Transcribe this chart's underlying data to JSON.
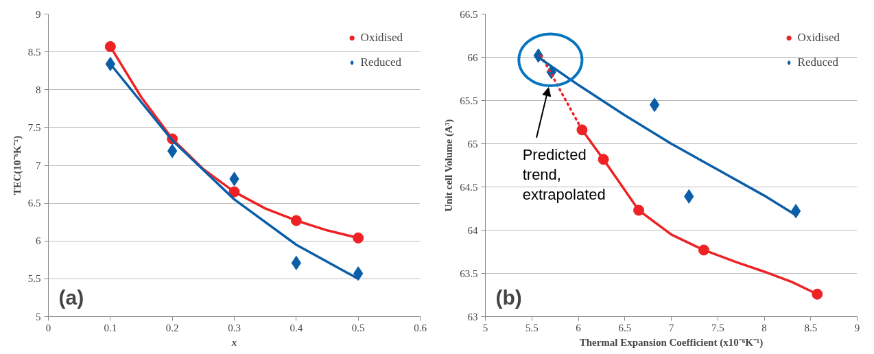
{
  "chart_data": [
    {
      "type": "scatter",
      "xlabel": "x",
      "ylabel": "TEC(10⁻⁶K⁻¹)",
      "xlim": [
        0,
        0.6
      ],
      "ylim": [
        5,
        9
      ],
      "xticks": [
        0,
        0.1,
        0.2,
        0.3,
        0.4,
        0.5,
        0.6
      ],
      "yticks": [
        5,
        5.5,
        6,
        6.5,
        7,
        7.5,
        8,
        8.5,
        9
      ],
      "grid": "y",
      "legend": "top right",
      "annotations": [
        "(a)"
      ],
      "series": [
        {
          "name": "Oxidised",
          "color": "#ee2224",
          "marker": "circle",
          "x": [
            0.1,
            0.2,
            0.3,
            0.4,
            0.5
          ],
          "values": [
            8.57,
            7.35,
            6.65,
            6.27,
            6.04
          ]
        },
        {
          "name": "Reduced",
          "color": "#0a5ea8",
          "marker": "diamond",
          "x": [
            0.1,
            0.2,
            0.3,
            0.4,
            0.5
          ],
          "values": [
            8.34,
            7.19,
            6.82,
            5.71,
            5.57
          ]
        },
        {
          "type": "line",
          "color": "#ee2224",
          "line_style": "solid",
          "x": [
            0.1,
            0.15,
            0.2,
            0.25,
            0.3,
            0.35,
            0.4,
            0.45,
            0.5
          ],
          "values": [
            8.57,
            7.9,
            7.35,
            6.95,
            6.65,
            6.43,
            6.27,
            6.14,
            6.04
          ]
        },
        {
          "type": "line",
          "color": "#0a5ea8",
          "line_style": "solid",
          "x": [
            0.1,
            0.2,
            0.3,
            0.4,
            0.5
          ],
          "values": [
            8.34,
            7.33,
            6.55,
            5.95,
            5.5
          ]
        }
      ]
    },
    {
      "type": "scatter",
      "xlabel": "Thermal Expansion Coefficient (x10⁻⁶K⁻¹)",
      "ylabel": "Unit cell Volume (A³)",
      "xlim": [
        5,
        9
      ],
      "ylim": [
        63,
        66.5
      ],
      "xticks": [
        5,
        5.5,
        6,
        6.5,
        7,
        7.5,
        8,
        8.5,
        9
      ],
      "yticks": [
        63,
        63.5,
        64,
        64.5,
        65,
        65.5,
        66,
        66.5
      ],
      "grid": "y",
      "legend": "top right",
      "annotations": [
        "(b)",
        "Predicted trend, extrapolated"
      ],
      "series": [
        {
          "name": "Oxidised",
          "color": "#ee2224",
          "marker": "circle",
          "x": [
            8.57,
            7.35,
            6.65,
            6.27,
            6.04
          ],
          "values": [
            63.26,
            63.77,
            64.23,
            64.82,
            65.16
          ]
        },
        {
          "name": "Reduced",
          "color": "#0a5ea8",
          "marker": "diamond",
          "x": [
            8.34,
            7.19,
            6.82,
            5.71,
            5.57
          ],
          "values": [
            64.22,
            64.39,
            65.45,
            65.83,
            66.02
          ]
        },
        {
          "type": "line",
          "color": "#ee2224",
          "line_style": "solid",
          "x": [
            6.04,
            6.27,
            6.65,
            7.0,
            7.35,
            7.7,
            8.0,
            8.3,
            8.57
          ],
          "values": [
            65.16,
            64.82,
            64.23,
            63.95,
            63.77,
            63.63,
            63.52,
            63.4,
            63.26
          ]
        },
        {
          "type": "line",
          "color": "#ee2224",
          "line_style": "dotted",
          "x": [
            5.6,
            6.04
          ],
          "values": [
            66.02,
            65.16
          ]
        },
        {
          "type": "line",
          "color": "#0a5ea8",
          "line_style": "solid",
          "x": [
            5.57,
            6.0,
            6.5,
            7.0,
            7.5,
            8.0,
            8.33
          ],
          "values": [
            66.0,
            65.68,
            65.33,
            65.0,
            64.7,
            64.4,
            64.18
          ]
        }
      ]
    }
  ]
}
